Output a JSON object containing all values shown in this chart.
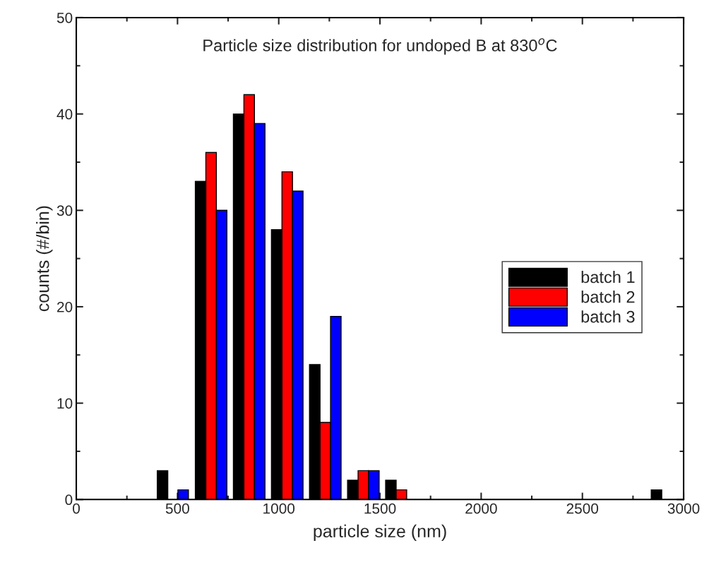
{
  "chart_data": {
    "type": "bar",
    "title": "Particle size distribution for undoped B at 830$^{o}$C",
    "xlabel": "particle size (nm)",
    "ylabel": "counts (#/bin)",
    "series": [
      {
        "name": "batch 1",
        "color": "#000000",
        "x": [
          426,
          614,
          802,
          990,
          1178,
          1366,
          1554,
          2866
        ],
        "values": [
          3,
          33,
          40,
          28,
          14,
          2,
          2,
          1
        ]
      },
      {
        "name": "batch 2",
        "color": "#ff0000",
        "x": [
          666,
          854,
          1042,
          1230,
          1418,
          1606
        ],
        "values": [
          36,
          42,
          34,
          8,
          3,
          1
        ]
      },
      {
        "name": "batch 3",
        "color": "#0000ff",
        "x": [
          528,
          718,
          906,
          1094,
          1282,
          1470
        ],
        "values": [
          1,
          30,
          39,
          32,
          19,
          3
        ]
      }
    ],
    "xlim": [
      0,
      3000
    ],
    "xticks": [
      0,
      500,
      1000,
      1500,
      2000,
      2500,
      3000
    ],
    "ylim": [
      0,
      50
    ],
    "yticks": [
      0,
      10,
      20,
      30,
      40,
      50
    ],
    "grid": false,
    "legend": "right"
  }
}
